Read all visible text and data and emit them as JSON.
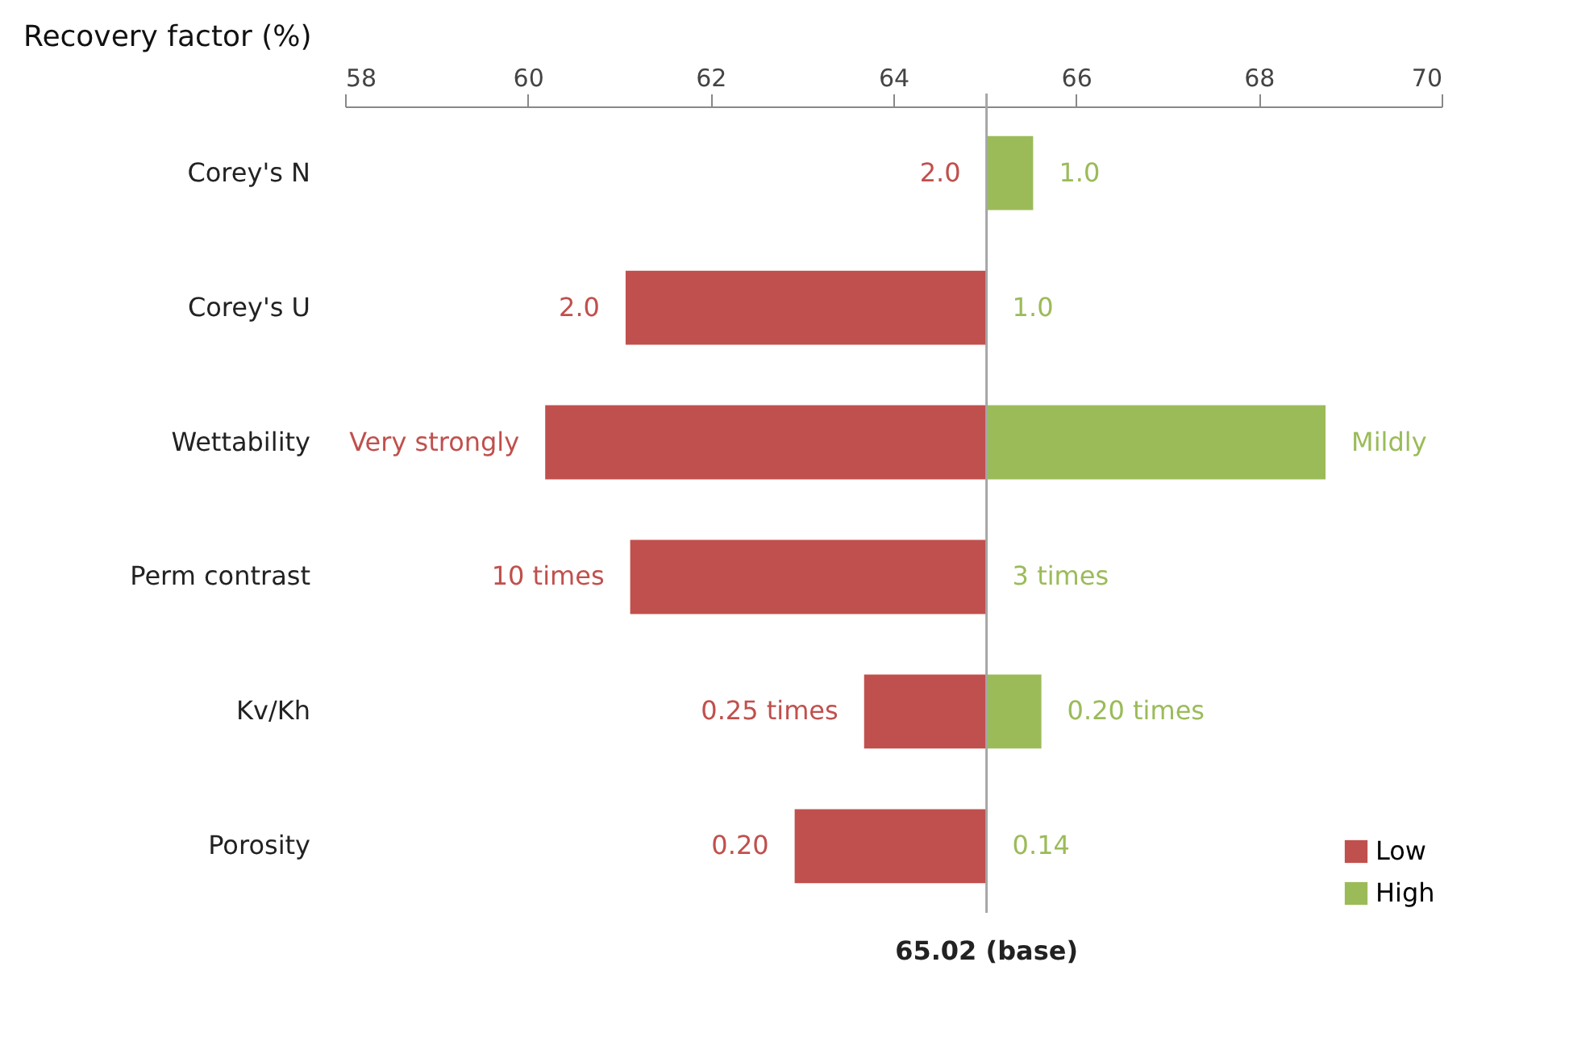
{
  "chart_data": {
    "type": "bar",
    "orientation": "horizontal",
    "xlabel": "Recovery factor (%)",
    "categories": [
      "Corey's N",
      "Corey's U",
      "Wettability",
      "Perm contrast",
      "Kv/Kh",
      "Porosity"
    ],
    "series": [
      {
        "name": "Low",
        "color": "#c0504d",
        "base": [
          null,
          65.02,
          65.02,
          65.02,
          65.02,
          65.02
        ],
        "values": [
          null,
          -3.95,
          -4.83,
          -3.9,
          -1.34,
          -2.1
        ]
      },
      {
        "name": "High",
        "color": "#9bbb59",
        "base": [
          65.02,
          null,
          65.02,
          null,
          65.02,
          null
        ],
        "values": [
          0.51,
          null,
          3.71,
          null,
          0.6,
          null
        ]
      }
    ],
    "annotations": [
      {
        "text": "2.0",
        "x": 65.02,
        "y": "Corey's N"
      },
      {
        "text": "1.0",
        "x": 65.53,
        "y": "Corey's N"
      },
      {
        "text": "2.0",
        "x": 61.07,
        "y": "Corey's U"
      },
      {
        "text": "1.0",
        "x": 65.02,
        "y": "Corey's U"
      },
      {
        "text": "Very strongly",
        "x": 60.19,
        "y": "Wettability"
      },
      {
        "text": "Mildly",
        "x": 68.73,
        "y": "Wettability"
      },
      {
        "text": "10 times",
        "x": 61.12,
        "y": "Perm contrast"
      },
      {
        "text": "3 times",
        "x": 65.02,
        "y": "Perm contrast"
      },
      {
        "text": "0.25 times",
        "x": 63.68,
        "y": "Kv/Kh"
      },
      {
        "text": "0.20 times",
        "x": 65.62,
        "y": "Kv/Kh"
      },
      {
        "text": "0.20",
        "x": 62.92,
        "y": "Porosity"
      },
      {
        "text": "0.14",
        "x": 65.02,
        "y": "Porosity"
      }
    ],
    "xlim": [
      58,
      70
    ],
    "xticks": [
      58,
      60,
      62,
      64,
      66,
      68,
      70
    ],
    "ref_lines": [
      {
        "axis": "x",
        "value": 65.02,
        "label": "65.02 (base)",
        "color": "#a6a6a6"
      }
    ],
    "grid": false,
    "legend": "bottom right"
  }
}
